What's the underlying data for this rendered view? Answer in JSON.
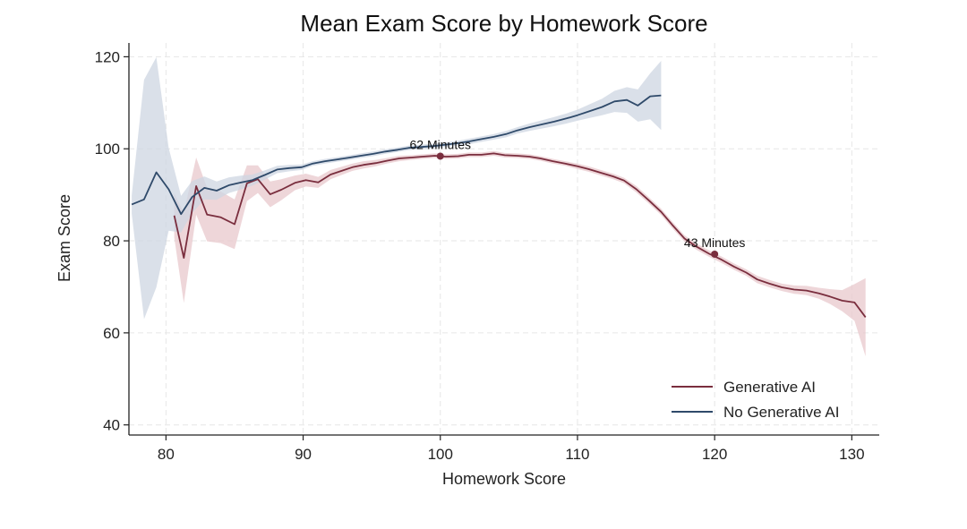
{
  "chart_data": {
    "type": "line",
    "title": "Mean Exam Score by Homework Score",
    "xlabel": "Homework Score",
    "ylabel": "Exam Score",
    "xlim": [
      77.3,
      132
    ],
    "ylim": [
      37.8,
      123
    ],
    "xticks": [
      80,
      90,
      100,
      110,
      120,
      130
    ],
    "yticks": [
      40,
      60,
      80,
      100,
      120
    ],
    "grid": true,
    "legend_position": "bottom-right",
    "series": [
      {
        "name": "Generative AI",
        "color": "#7a2e3e",
        "band_color": "#e8c8cc",
        "x": [
          80.6,
          81.3,
          82.2,
          83.0,
          84.0,
          85.0,
          85.9,
          86.7,
          87.6,
          88.4,
          89.4,
          90.2,
          91.1,
          92.0,
          92.8,
          93.6,
          94.4,
          95.3,
          96.1,
          97.0,
          97.9,
          98.7,
          99.6,
          100.4,
          101.3,
          102.1,
          103.0,
          103.9,
          104.7,
          105.6,
          106.5,
          107.3,
          108.2,
          109.1,
          110.0,
          110.8,
          111.7,
          112.6,
          113.4,
          114.3,
          115.2,
          116.1,
          116.9,
          117.8,
          118.7,
          119.6,
          120.5,
          121.4,
          122.3,
          123.1,
          124.0,
          124.9,
          125.8,
          126.7,
          127.6,
          128.4,
          129.3,
          130.2,
          131.0
        ],
        "y": [
          85.5,
          76.3,
          91.9,
          85.7,
          85.1,
          83.6,
          92.5,
          93.4,
          90.1,
          91.1,
          92.6,
          93.2,
          92.7,
          94.4,
          95.2,
          96.0,
          96.5,
          96.9,
          97.4,
          97.9,
          98.1,
          98.3,
          98.5,
          98.3,
          98.4,
          98.7,
          98.7,
          99.0,
          98.6,
          98.5,
          98.3,
          97.9,
          97.3,
          96.8,
          96.2,
          95.6,
          94.8,
          94.0,
          93.1,
          91.2,
          88.8,
          86.3,
          83.5,
          80.5,
          78.7,
          77.2,
          75.9,
          74.4,
          73.1,
          71.6,
          70.7,
          69.9,
          69.4,
          69.2,
          68.6,
          67.9,
          67.0,
          66.6,
          63.4
        ],
        "band": [
          4.8,
          9.8,
          6.2,
          5.8,
          5.6,
          5.4,
          3.9,
          3.0,
          2.8,
          2.3,
          1.6,
          1.4,
          1.2,
          1.0,
          0.9,
          0.8,
          0.8,
          0.7,
          0.6,
          0.6,
          0.5,
          0.5,
          0.5,
          0.5,
          0.5,
          0.5,
          0.5,
          0.5,
          0.5,
          0.5,
          0.5,
          0.5,
          0.5,
          0.5,
          0.6,
          0.6,
          0.6,
          0.6,
          0.6,
          0.7,
          0.7,
          0.7,
          0.7,
          0.7,
          0.7,
          0.7,
          0.7,
          0.7,
          0.7,
          0.8,
          0.8,
          0.8,
          0.9,
          1.0,
          1.2,
          1.6,
          2.3,
          4.0,
          8.5
        ],
        "marker": {
          "x": 120.0,
          "y": 77.1,
          "label": "43 Minutes"
        }
      },
      {
        "name": "No Generative AI",
        "color": "#2f4a6a",
        "band_color": "#cdd6e2",
        "x": [
          77.5,
          78.4,
          79.3,
          80.2,
          81.1,
          81.9,
          82.8,
          83.7,
          84.6,
          85.5,
          86.3,
          87.2,
          88.1,
          89.0,
          89.9,
          90.7,
          91.6,
          92.5,
          93.4,
          94.2,
          95.1,
          96.0,
          96.9,
          97.7,
          98.6,
          99.5,
          100.4,
          101.2,
          102.1,
          103.0,
          103.9,
          104.8,
          105.6,
          106.5,
          107.4,
          108.3,
          109.2,
          110.0,
          110.9,
          111.8,
          112.7,
          113.6,
          114.4,
          115.3,
          116.1
        ],
        "y": [
          87.9,
          89.0,
          94.9,
          91.2,
          85.8,
          89.5,
          91.5,
          90.9,
          92.1,
          92.7,
          93.2,
          94.3,
          95.5,
          95.8,
          96.0,
          96.8,
          97.3,
          97.7,
          98.1,
          98.5,
          98.9,
          99.4,
          99.8,
          100.2,
          100.4,
          100.6,
          100.9,
          101.2,
          101.6,
          102.1,
          102.6,
          103.2,
          104.0,
          104.7,
          105.3,
          105.9,
          106.6,
          107.3,
          108.2,
          109.1,
          110.3,
          110.6,
          109.4,
          111.4,
          111.6
        ],
        "band": [
          2.0,
          26.0,
          25.0,
          9.0,
          4.0,
          3.5,
          2.5,
          2.0,
          1.7,
          1.5,
          1.2,
          1.0,
          0.8,
          0.7,
          0.6,
          0.5,
          0.5,
          0.5,
          0.5,
          0.5,
          0.5,
          0.5,
          0.5,
          0.5,
          0.5,
          0.5,
          0.5,
          0.5,
          0.6,
          0.6,
          0.6,
          0.7,
          0.7,
          0.8,
          0.9,
          1.0,
          1.1,
          1.2,
          1.5,
          1.8,
          2.3,
          2.8,
          3.5,
          5.0,
          7.5
        ],
        "marker": {
          "x": 100.0,
          "y": 98.4,
          "label": "62 Minutes"
        }
      }
    ]
  }
}
